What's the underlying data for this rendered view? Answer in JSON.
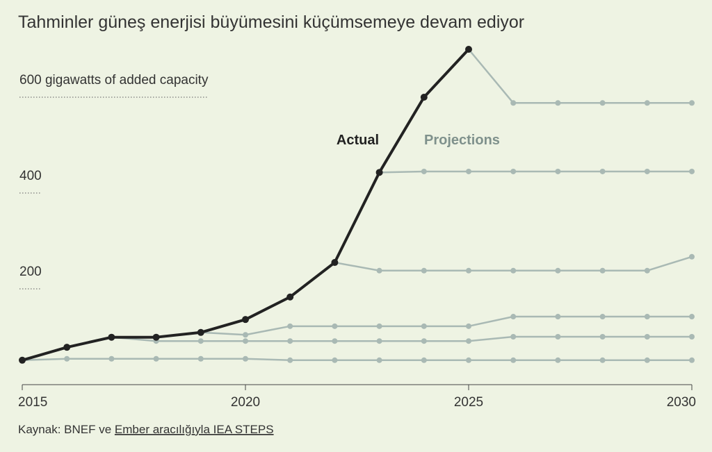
{
  "chart_data": {
    "type": "line",
    "title": "Tahminler güneş enerjisi büyümesini küçümsemeye devam ediyor",
    "x": [
      2015,
      2016,
      2017,
      2018,
      2019,
      2020,
      2021,
      2022,
      2023,
      2024,
      2025,
      2026,
      2027,
      2028,
      2029,
      2030
    ],
    "xlim": [
      2015,
      2030
    ],
    "xticks": [
      2015,
      2020,
      2025,
      2030
    ],
    "ylim": [
      0,
      700
    ],
    "yticks": [
      200,
      400,
      {
        "value": 600,
        "label": "600 gigawatts of added capacity"
      }
    ],
    "series": [
      {
        "name": "Actual",
        "color": "#222222",
        "values": [
          51,
          78,
          99,
          99,
          109,
          136,
          183,
          255,
          443,
          600,
          700,
          null,
          null,
          null,
          null,
          null
        ]
      }
    ],
    "projections": {
      "name": "Projections",
      "color": "#a9b9b4",
      "lines": [
        [
          51,
          54,
          54,
          54,
          54,
          54,
          51,
          51,
          51,
          51,
          51,
          51,
          51,
          51,
          51,
          51
        ],
        [
          null,
          null,
          99,
          91,
          91,
          91,
          91,
          91,
          91,
          91,
          91,
          100,
          100,
          100,
          100,
          100
        ],
        [
          null,
          null,
          null,
          null,
          109,
          104,
          122,
          122,
          122,
          122,
          122,
          142,
          142,
          142,
          142,
          142
        ],
        [
          null,
          null,
          null,
          null,
          null,
          null,
          null,
          255,
          238,
          238,
          238,
          238,
          238,
          238,
          238,
          267
        ],
        [
          null,
          null,
          null,
          null,
          null,
          null,
          null,
          null,
          443,
          445,
          445,
          445,
          445,
          445,
          445,
          445
        ],
        [
          null,
          null,
          null,
          null,
          null,
          null,
          null,
          null,
          null,
          null,
          700,
          588,
          588,
          588,
          588,
          588
        ]
      ]
    },
    "source_prefix": "Kaynak: BNEF ve",
    "source_link": "Ember aracılığıyla IEA STEPS"
  }
}
